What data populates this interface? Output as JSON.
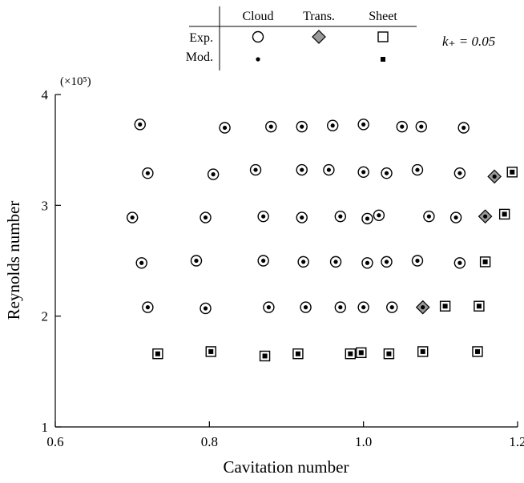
{
  "chart_data": {
    "type": "scatter",
    "title": "",
    "xlabel": "Cavitation number",
    "ylabel": "Reynolds number",
    "y_multiplier": "(×10⁵)",
    "xlim": [
      0.6,
      1.2
    ],
    "ylim": [
      1,
      4
    ],
    "x_ticks": [
      "0.6",
      "0.8",
      "1.0",
      "1.2"
    ],
    "y_ticks": [
      "1",
      "2",
      "3",
      "4"
    ],
    "annotation": "k₊ = 0.05",
    "legend": {
      "columns": [
        "Cloud",
        "Trans.",
        "Sheet"
      ],
      "rows": [
        "Exp.",
        "Mod."
      ],
      "placement": "top-center"
    },
    "series": [
      {
        "name": "Exp. Cloud",
        "marker": "open-circle",
        "points": [
          [
            0.71,
            3.73
          ],
          [
            0.82,
            3.7
          ],
          [
            0.88,
            3.71
          ],
          [
            0.92,
            3.71
          ],
          [
            0.96,
            3.72
          ],
          [
            1.0,
            3.73
          ],
          [
            1.05,
            3.71
          ],
          [
            1.075,
            3.71
          ],
          [
            1.13,
            3.7
          ],
          [
            0.72,
            3.29
          ],
          [
            0.805,
            3.28
          ],
          [
            0.86,
            3.32
          ],
          [
            0.92,
            3.32
          ],
          [
            0.955,
            3.32
          ],
          [
            1.0,
            3.3
          ],
          [
            1.03,
            3.29
          ],
          [
            1.07,
            3.32
          ],
          [
            1.125,
            3.29
          ],
          [
            0.7,
            2.89
          ],
          [
            0.795,
            2.89
          ],
          [
            0.87,
            2.9
          ],
          [
            0.92,
            2.89
          ],
          [
            0.97,
            2.9
          ],
          [
            1.005,
            2.88
          ],
          [
            1.02,
            2.91
          ],
          [
            1.085,
            2.9
          ],
          [
            1.12,
            2.89
          ],
          [
            0.712,
            2.48
          ],
          [
            0.783,
            2.5
          ],
          [
            0.87,
            2.5
          ],
          [
            0.922,
            2.49
          ],
          [
            0.964,
            2.49
          ],
          [
            1.005,
            2.48
          ],
          [
            1.03,
            2.49
          ],
          [
            1.07,
            2.5
          ],
          [
            1.125,
            2.48
          ],
          [
            0.72,
            2.08
          ],
          [
            0.795,
            2.07
          ],
          [
            0.877,
            2.08
          ],
          [
            0.925,
            2.08
          ],
          [
            0.97,
            2.08
          ],
          [
            1.0,
            2.08
          ],
          [
            1.037,
            2.08
          ]
        ]
      },
      {
        "name": "Exp. Trans.",
        "marker": "gray-diamond",
        "points": [
          [
            1.17,
            3.26
          ],
          [
            1.158,
            2.9
          ],
          [
            1.077,
            2.08
          ]
        ]
      },
      {
        "name": "Exp. Sheet",
        "marker": "open-square",
        "points": [
          [
            1.193,
            3.3
          ],
          [
            1.183,
            2.92
          ],
          [
            1.158,
            2.49
          ],
          [
            1.106,
            2.09
          ],
          [
            1.15,
            2.09
          ],
          [
            0.733,
            1.66
          ],
          [
            0.802,
            1.68
          ],
          [
            0.872,
            1.64
          ],
          [
            0.915,
            1.66
          ],
          [
            0.983,
            1.66
          ],
          [
            0.997,
            1.67
          ],
          [
            1.033,
            1.66
          ],
          [
            1.077,
            1.68
          ],
          [
            1.148,
            1.68
          ]
        ]
      },
      {
        "name": "Mod. Cloud",
        "marker": "filled-dot",
        "points": [
          [
            0.71,
            3.73
          ],
          [
            0.82,
            3.7
          ],
          [
            0.88,
            3.71
          ],
          [
            0.92,
            3.71
          ],
          [
            0.96,
            3.72
          ],
          [
            1.0,
            3.73
          ],
          [
            1.05,
            3.71
          ],
          [
            1.075,
            3.71
          ],
          [
            1.13,
            3.7
          ],
          [
            0.72,
            3.29
          ],
          [
            0.805,
            3.28
          ],
          [
            0.86,
            3.32
          ],
          [
            0.92,
            3.32
          ],
          [
            0.955,
            3.32
          ],
          [
            1.0,
            3.3
          ],
          [
            1.03,
            3.29
          ],
          [
            1.07,
            3.32
          ],
          [
            1.125,
            3.29
          ],
          [
            1.17,
            3.26
          ],
          [
            0.7,
            2.89
          ],
          [
            0.795,
            2.89
          ],
          [
            0.87,
            2.9
          ],
          [
            0.92,
            2.89
          ],
          [
            0.97,
            2.9
          ],
          [
            1.005,
            2.88
          ],
          [
            1.02,
            2.91
          ],
          [
            1.085,
            2.9
          ],
          [
            1.12,
            2.89
          ],
          [
            1.158,
            2.9
          ],
          [
            0.712,
            2.48
          ],
          [
            0.783,
            2.5
          ],
          [
            0.87,
            2.5
          ],
          [
            0.922,
            2.49
          ],
          [
            0.964,
            2.49
          ],
          [
            1.005,
            2.48
          ],
          [
            1.03,
            2.49
          ],
          [
            1.07,
            2.5
          ],
          [
            1.125,
            2.48
          ],
          [
            0.72,
            2.08
          ],
          [
            0.795,
            2.07
          ],
          [
            0.877,
            2.08
          ],
          [
            0.925,
            2.08
          ],
          [
            0.97,
            2.08
          ],
          [
            1.0,
            2.08
          ],
          [
            1.037,
            2.08
          ],
          [
            1.077,
            2.08
          ]
        ]
      },
      {
        "name": "Mod. Sheet",
        "marker": "filled-square",
        "points": [
          [
            1.193,
            3.3
          ],
          [
            1.183,
            2.92
          ],
          [
            1.158,
            2.49
          ],
          [
            1.106,
            2.09
          ],
          [
            1.15,
            2.09
          ],
          [
            0.733,
            1.66
          ],
          [
            0.802,
            1.68
          ],
          [
            0.872,
            1.64
          ],
          [
            0.915,
            1.66
          ],
          [
            0.983,
            1.66
          ],
          [
            0.997,
            1.67
          ],
          [
            1.033,
            1.66
          ],
          [
            1.077,
            1.68
          ],
          [
            1.148,
            1.68
          ]
        ]
      }
    ]
  }
}
